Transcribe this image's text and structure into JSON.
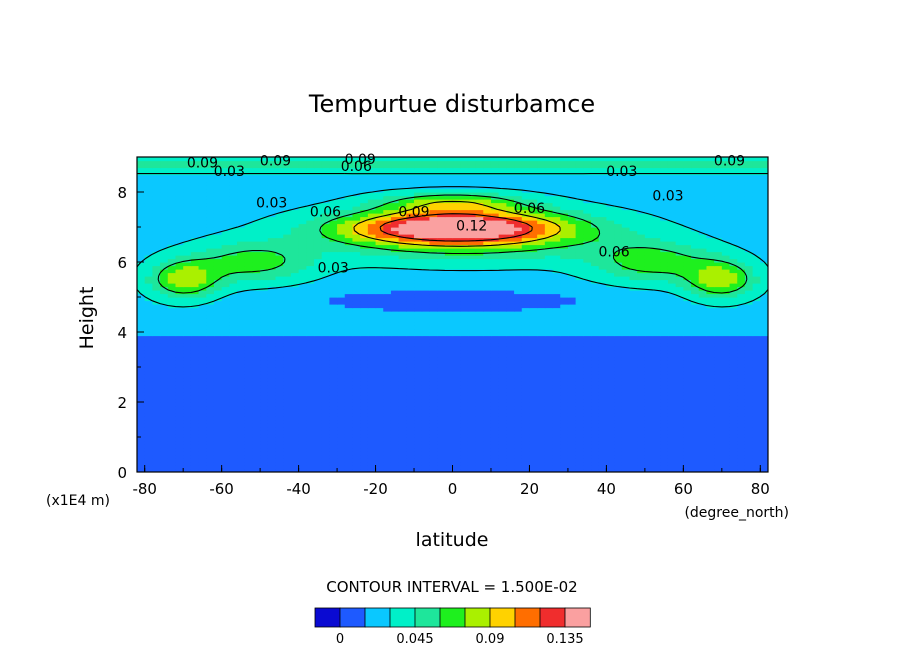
{
  "chart_data": {
    "type": "contour",
    "title": "Tempurtue disturbamce",
    "xlabel": "latitude",
    "ylabel": "Height",
    "x_unit": "(degree_north)",
    "y_unit": "(x1E4 m)",
    "xlim": [
      -82,
      82
    ],
    "ylim": [
      0,
      9
    ],
    "x_ticks": [
      -80,
      -60,
      -40,
      -20,
      0,
      20,
      40,
      60,
      80
    ],
    "y_ticks": [
      0,
      2,
      4,
      6,
      8
    ],
    "contour_interval_text": "CONTOUR INTERVAL = 1.500E-02",
    "levels": [
      -0.015,
      0,
      0.015,
      0.03,
      0.045,
      0.06,
      0.075,
      0.09,
      0.105,
      0.12,
      0.135,
      0.15
    ],
    "colorbar": {
      "colors": [
        "#0a0ad2",
        "#1e5aff",
        "#0ac8ff",
        "#00f0c8",
        "#1ee69b",
        "#1ef01e",
        "#aaf000",
        "#ffd200",
        "#ff6e00",
        "#f02d2d",
        "#faa0a0"
      ],
      "tick_labels": [
        "0",
        "0.045",
        "0.09",
        "0.135"
      ],
      "tick_values": [
        0,
        0.045,
        0.09,
        0.135
      ]
    },
    "contour_labels": [
      {
        "text": "0.03",
        "lat": -47,
        "h": 7.7
      },
      {
        "text": "0.06",
        "lat": -33,
        "h": 7.45
      },
      {
        "text": "0.09",
        "lat": -10,
        "h": 7.45
      },
      {
        "text": "0.06",
        "lat": 20,
        "h": 7.55
      },
      {
        "text": "0.12",
        "lat": 5,
        "h": 7.05
      },
      {
        "text": "0.03",
        "lat": 56,
        "h": 7.9
      },
      {
        "text": "0.06",
        "lat": 42,
        "h": 6.3
      },
      {
        "text": "0.03",
        "lat": -31,
        "h": 5.85
      },
      {
        "text": "0.03",
        "lat": -58,
        "h": 8.6
      },
      {
        "text": "0.03",
        "lat": 44,
        "h": 8.6
      },
      {
        "text": "0.06",
        "lat": -25,
        "h": 8.75
      },
      {
        "text": "0.09",
        "lat": -65,
        "h": 8.85
      },
      {
        "text": "0.09",
        "lat": -46,
        "h": 8.9
      },
      {
        "text": "0.09",
        "lat": -24,
        "h": 8.95
      },
      {
        "text": "0.09",
        "lat": 72,
        "h": 8.9
      }
    ]
  }
}
